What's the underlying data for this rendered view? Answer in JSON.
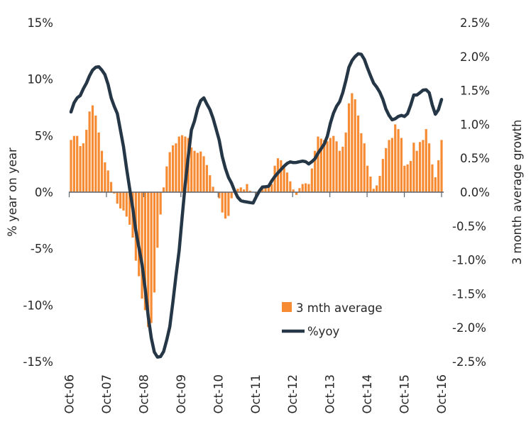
{
  "chart_data": {
    "type": "bar+line",
    "title": "",
    "xlabel": "",
    "ylabel_left": "% year on year",
    "ylabel_right": "3 month average growth",
    "ylim_left": [
      -15,
      15
    ],
    "ylim_right": [
      -2.5,
      2.5
    ],
    "yticks_left": [
      "15%",
      "10%",
      "5%",
      "0%",
      "-5%",
      "-10%",
      "-15%"
    ],
    "yticks_right": [
      "2.5%",
      "2.0%",
      "1.5%",
      "1.0%",
      "0.5%",
      "0.0%",
      "-0.5%",
      "-1.0%",
      "-1.5%",
      "-2.0%",
      "-2.5%"
    ],
    "xticks": [
      "Oct-06",
      "Oct-07",
      "Oct-08",
      "Oct-09",
      "Oct-10",
      "Oct-11",
      "Oct-12",
      "Oct-13",
      "Oct-14",
      "Oct-15",
      "Oct-16"
    ],
    "x_range": [
      "Oct-06",
      "Oct-16"
    ],
    "x_frequency": "monthly",
    "grid": false,
    "legend_position": "bottom-right inside",
    "series": [
      {
        "name": "3 mth average",
        "type": "bar",
        "axis": "right",
        "color": "#F68B33",
        "values": [
          0.77,
          0.83,
          0.83,
          0.68,
          0.72,
          0.92,
          1.19,
          1.28,
          1.13,
          0.88,
          0.61,
          0.44,
          0.32,
          0.15,
          -0.02,
          -0.17,
          -0.24,
          -0.27,
          -0.36,
          -0.48,
          -0.67,
          -1.01,
          -1.24,
          -1.57,
          -1.74,
          -1.99,
          -1.93,
          -1.48,
          -0.82,
          -0.33,
          0.07,
          0.38,
          0.59,
          0.69,
          0.72,
          0.82,
          0.84,
          0.82,
          0.8,
          0.66,
          0.61,
          0.58,
          0.6,
          0.53,
          0.4,
          0.25,
          0.08,
          0.01,
          -0.09,
          -0.3,
          -0.39,
          -0.35,
          -0.09,
          0,
          0.05,
          0.07,
          0.04,
          0.12,
          0.02,
          0,
          -0.02,
          0,
          0.05,
          0.07,
          0.07,
          0.12,
          0.39,
          0.5,
          0.47,
          0.39,
          0.29,
          0.16,
          0.04,
          -0.04,
          0.06,
          0.12,
          0.13,
          0.12,
          0.35,
          0.61,
          0.82,
          0.79,
          0.77,
          0.75,
          0.8,
          0.83,
          0.75,
          0.61,
          0.67,
          0.88,
          1.31,
          1.46,
          1.37,
          1.13,
          0.87,
          0.72,
          0.39,
          0.23,
          0.05,
          0.1,
          0.24,
          0.49,
          0.65,
          0.77,
          0.8,
          1.0,
          0.93,
          0.8,
          0.39,
          0.41,
          0.46,
          0.73,
          0.61,
          0.74,
          0.77,
          0.93,
          0.72,
          0.41,
          0.22,
          0.47,
          0.77
        ]
      },
      {
        "name": "%yoy",
        "type": "line",
        "axis": "left",
        "color": "#253746",
        "values": [
          7.1,
          7.9,
          8.35,
          8.55,
          9.15,
          9.65,
          10.3,
          10.8,
          11.05,
          11.1,
          10.8,
          10.4,
          9.55,
          8.35,
          7.6,
          6.95,
          5.5,
          4.05,
          2.1,
          0.3,
          -1.4,
          -3.4,
          -4.9,
          -6.4,
          -8.5,
          -11.0,
          -12.9,
          -14.15,
          -14.6,
          -14.55,
          -14.1,
          -13.1,
          -11.9,
          -9.7,
          -7.4,
          -5.2,
          -2.2,
          0.7,
          3.2,
          5.5,
          6.3,
          7.4,
          8.1,
          8.35,
          7.8,
          7.3,
          6.55,
          5.6,
          4.6,
          3.15,
          2.1,
          1.3,
          0.8,
          0.1,
          -0.45,
          -0.75,
          -0.83,
          -0.87,
          -0.92,
          -0.96,
          -0.4,
          0.1,
          0.45,
          0.48,
          0.52,
          1.0,
          1.38,
          1.7,
          2.0,
          2.3,
          2.55,
          2.68,
          2.62,
          2.63,
          2.69,
          2.75,
          2.7,
          2.5,
          2.7,
          2.95,
          3.45,
          3.85,
          4.25,
          4.95,
          6.1,
          7.0,
          7.6,
          8.0,
          8.8,
          9.85,
          11.05,
          11.65,
          12.0,
          12.25,
          12.2,
          11.75,
          11.0,
          10.3,
          9.65,
          9.3,
          8.85,
          8.2,
          7.35,
          6.8,
          6.4,
          6.5,
          6.7,
          6.8,
          6.7,
          6.95,
          7.7,
          8.6,
          8.6,
          8.8,
          9.03,
          9.06,
          8.8,
          7.7,
          6.9,
          7.3,
          8.2
        ]
      }
    ]
  }
}
